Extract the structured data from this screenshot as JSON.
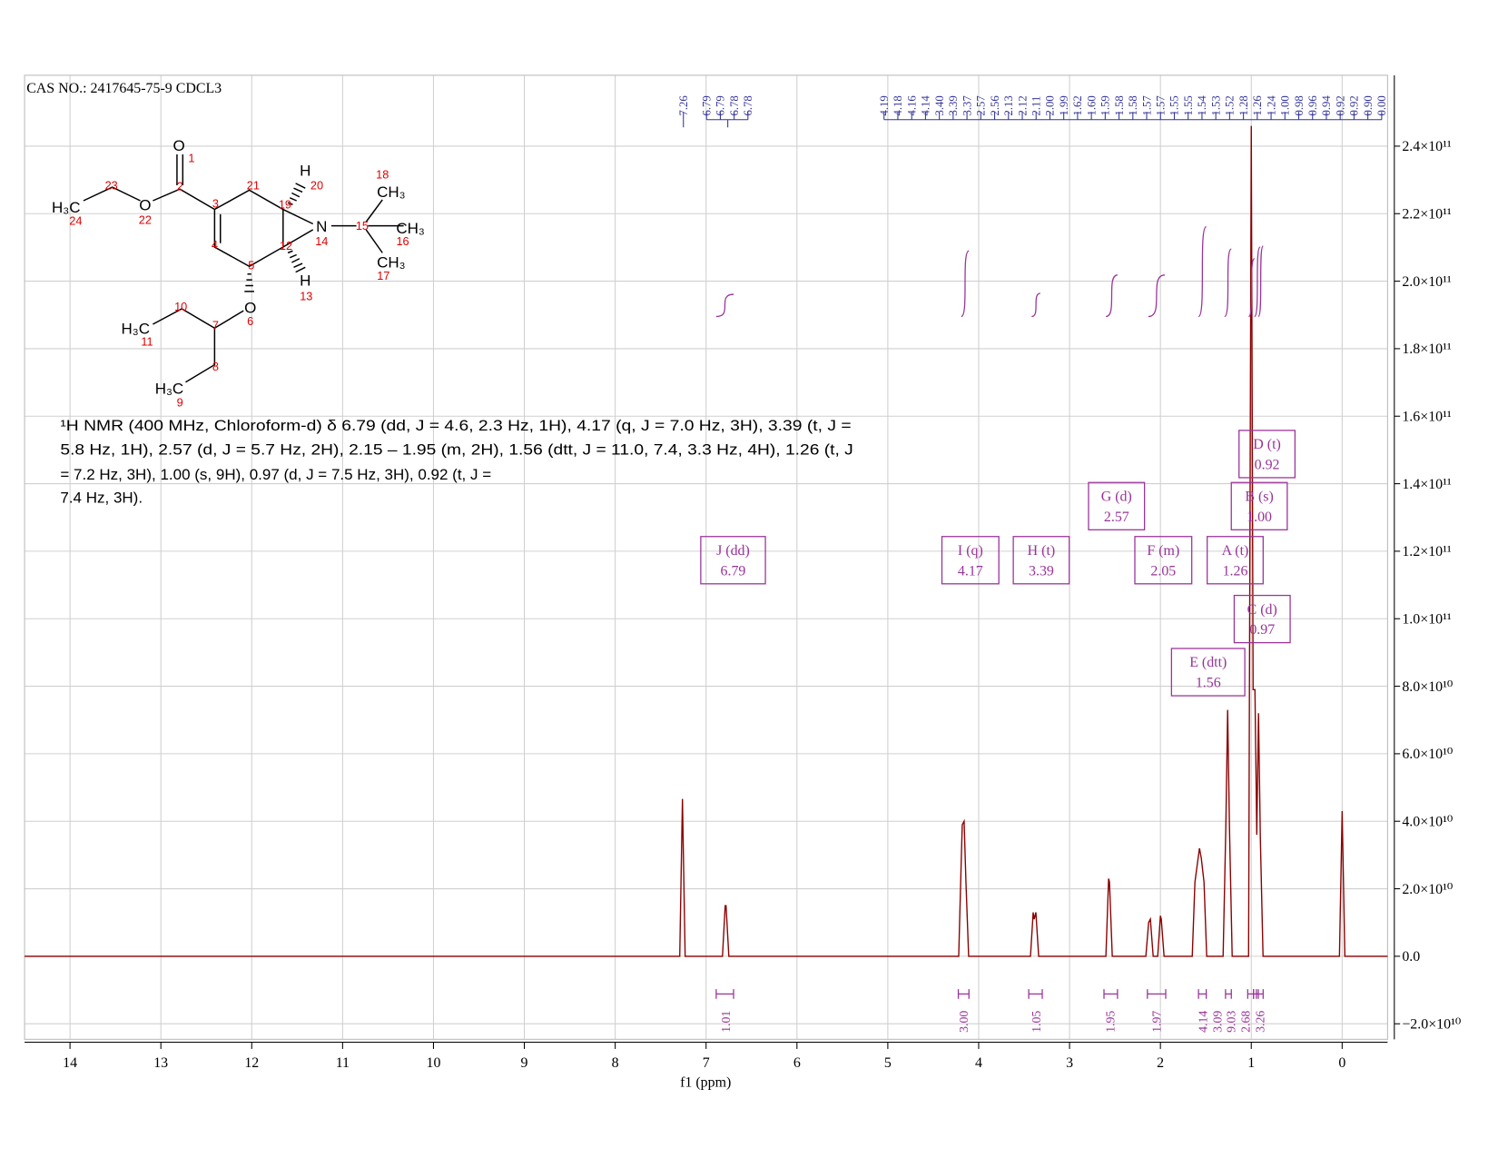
{
  "chart_data": {
    "type": "line",
    "title": "CAS NO.: 2417645-75-9 CDCL3",
    "xlabel": "f1 (ppm)",
    "color": "#8b0000",
    "grid": true,
    "xlim": [
      14.5,
      -0.5
    ],
    "xticks": [
      14,
      13,
      12,
      11,
      10,
      9,
      8,
      7,
      6,
      5,
      4,
      3,
      2,
      1,
      0
    ],
    "ylim": [
      -24600000000.0,
      261000000000.0
    ],
    "yticks": [
      {
        "value": -20000000000.0,
        "label": "−2.0×10¹⁰"
      },
      {
        "value": 0,
        "label": "0.0"
      },
      {
        "value": 20000000000.0,
        "label": "2.0×10¹⁰"
      },
      {
        "value": 40000000000.0,
        "label": "4.0×10¹⁰"
      },
      {
        "value": 60000000000.0,
        "label": "6.0×10¹⁰"
      },
      {
        "value": 80000000000.0,
        "label": "8.0×10¹⁰"
      },
      {
        "value": 100000000000.0,
        "label": "1.0×10¹¹"
      },
      {
        "value": 120000000000.0,
        "label": "1.2×10¹¹"
      },
      {
        "value": 140000000000.0,
        "label": "1.4×10¹¹"
      },
      {
        "value": 160000000000.0,
        "label": "1.6×10¹¹"
      },
      {
        "value": 180000000000.0,
        "label": "1.8×10¹¹"
      },
      {
        "value": 200000000000.0,
        "label": "2.0×10¹¹"
      },
      {
        "value": 220000000000.0,
        "label": "2.2×10¹¹"
      },
      {
        "value": 240000000000.0,
        "label": "2.4×10¹¹"
      }
    ],
    "x": [
      14.5,
      7.29,
      7.26,
      7.23,
      6.82,
      6.79,
      6.78,
      6.75,
      4.22,
      4.19,
      4.18,
      4.16,
      4.14,
      4.11,
      3.43,
      3.4,
      3.39,
      3.37,
      3.34,
      2.6,
      2.57,
      2.56,
      2.53,
      2.16,
      2.13,
      2.11,
      2.08,
      2.03,
      2.0,
      1.99,
      1.96,
      1.65,
      1.62,
      1.59,
      1.57,
      1.55,
      1.52,
      1.49,
      1.31,
      1.28,
      1.26,
      1.24,
      1.21,
      1.03,
      1.0,
      0.98,
      0.96,
      0.94,
      0.92,
      0.9,
      0.87,
      0.03,
      0.0,
      -0.03,
      -0.5
    ],
    "values": [
      0,
      0,
      46600000000.0,
      0,
      0,
      15000000000.0,
      15000000000.0,
      0,
      0,
      30000000000.0,
      39000000000.0,
      40000000000.0,
      22000000000.0,
      0,
      0,
      13000000000.0,
      11000000000.0,
      13000000000.0,
      0,
      0,
      23000000000.0,
      22000000000.0,
      0,
      0,
      10000000000.0,
      11000000000.0,
      0,
      0,
      12000000000.0,
      11000000000.0,
      0,
      0,
      22000000000.0,
      28000000000.0,
      32000000000.0,
      29000000000.0,
      22000000000.0,
      0,
      0,
      38000000000.0,
      73000000000.0,
      38000000000.0,
      0,
      0,
      246000000000.0,
      79000000000.0,
      79000000000.0,
      36000000000.0,
      72000000000.0,
      35000000000.0,
      0,
      0,
      43000000000.0,
      0,
      0
    ],
    "peak_labels": [
      "7.26",
      "6.79",
      "6.79",
      "6.78",
      "6.78",
      "4.19",
      "4.18",
      "4.16",
      "4.14",
      "3.40",
      "3.39",
      "3.37",
      "2.57",
      "2.56",
      "2.13",
      "2.12",
      "2.11",
      "2.00",
      "1.99",
      "1.62",
      "1.60",
      "1.59",
      "1.58",
      "1.58",
      "1.57",
      "1.57",
      "1.55",
      "1.55",
      "1.54",
      "1.53",
      "1.52",
      "1.28",
      "1.26",
      "1.24",
      "1.00",
      "0.98",
      "0.96",
      "0.94",
      "0.92",
      "0.92",
      "0.90",
      "0.00"
    ],
    "multiplets": [
      {
        "name": "J (dd)",
        "shift": "6.79"
      },
      {
        "name": "I (q)",
        "shift": "4.17"
      },
      {
        "name": "H (t)",
        "shift": "3.39"
      },
      {
        "name": "G (d)",
        "shift": "2.57"
      },
      {
        "name": "F (m)",
        "shift": "2.05"
      },
      {
        "name": "A (t)",
        "shift": "1.26"
      },
      {
        "name": "B (s)",
        "shift": "1.00"
      },
      {
        "name": "D (t)",
        "shift": "0.92"
      },
      {
        "name": "C (d)",
        "shift": "0.97"
      },
      {
        "name": "E (dtt)",
        "shift": "1.56"
      }
    ],
    "integrals": [
      "1.01",
      "3.00",
      "1.05",
      "1.95",
      "1.97",
      "4.14",
      "3.09",
      "9.03",
      "2.68",
      "3.26"
    ]
  },
  "description": [
    "¹H NMR (400 MHz, Chloroform-d) δ 6.79 (dd, J = 4.6, 2.3 Hz, 1H), 4.17 (q, J = 7.0 Hz, 3H), 3.39 (t, J =",
    "5.8 Hz, 1H), 2.57 (d, J = 5.7 Hz, 2H), 2.15 – 1.95 (m, 2H), 1.56 (dtt, J = 11.0, 7.4, 3.3 Hz, 4H), 1.26 (t, J",
    "= 7.2 Hz, 3H), 1.00 (s, 9H), 0.97 (d, J = 7.5 Hz, 3H), 0.92 (t, J =",
    "7.4 Hz, 3H)."
  ],
  "structure": [
    "O",
    "1",
    "2",
    "23",
    "H₃C",
    "24",
    "O",
    "22",
    "3",
    "21",
    "4",
    "5",
    "19",
    "H",
    "20",
    "12",
    "N",
    "14",
    "15",
    "18",
    "CH₃",
    "CH₃",
    "16",
    "CH₃",
    "17",
    "H",
    "13",
    "O",
    "6",
    "10",
    "7",
    "H₃C",
    "11",
    "8",
    "H₃C",
    "9"
  ]
}
